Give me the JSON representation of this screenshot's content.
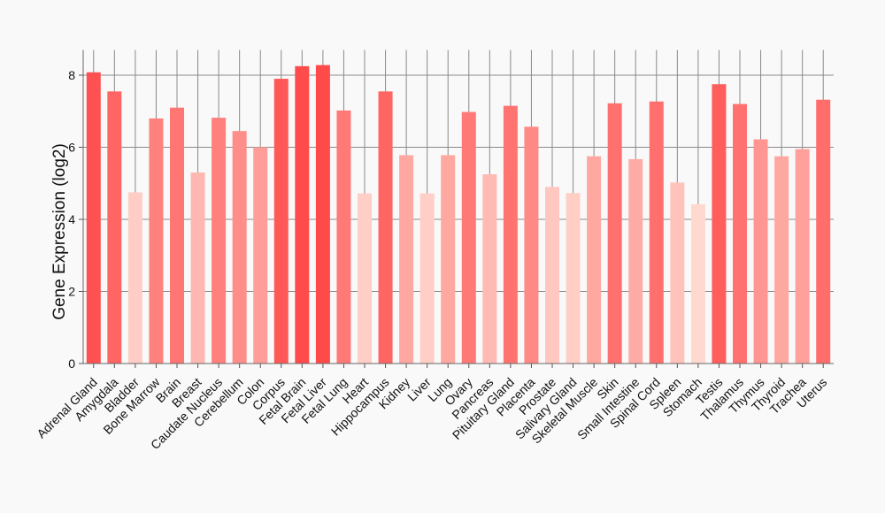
{
  "chart_data": {
    "type": "bar",
    "ylabel": "Gene Expression (log2)",
    "xlabel": "",
    "title": "",
    "ylim": [
      0,
      8.7
    ],
    "yticks": [
      0,
      2,
      4,
      6,
      8
    ],
    "grid": true,
    "color_high": "#ff4a4a",
    "color_low": "#ffd9d0",
    "categories": [
      "Adrenal Gland",
      "Amygdala",
      "Bladder",
      "Bone Marrow",
      "Brain",
      "Breast",
      "Caudate Nucleus",
      "Cerebellum",
      "Colon",
      "Corpus",
      "Fetal Brain",
      "Fetal Liver",
      "Fetal Lung",
      "Heart",
      "Hippocampus",
      "Kidney",
      "Liver",
      "Lung",
      "Ovary",
      "Pancreas",
      "Pituitary Gland",
      "Placenta",
      "Prostate",
      "Salivary Gland",
      "Skeletal Muscle",
      "Skin",
      "Small Intestine",
      "Spinal Cord",
      "Spleen",
      "Stomach",
      "Testis",
      "Thalamus",
      "Thymus",
      "Thyroid",
      "Trachea",
      "Uterus"
    ],
    "values": [
      8.08,
      7.55,
      4.75,
      6.8,
      7.1,
      5.3,
      6.82,
      6.45,
      6.0,
      7.9,
      8.25,
      8.28,
      7.02,
      4.72,
      7.55,
      5.78,
      4.72,
      5.78,
      6.98,
      5.25,
      7.15,
      6.57,
      4.9,
      4.73,
      5.75,
      7.22,
      5.67,
      7.27,
      5.02,
      4.42,
      7.75,
      7.2,
      6.22,
      5.75,
      5.95,
      7.32
    ]
  }
}
